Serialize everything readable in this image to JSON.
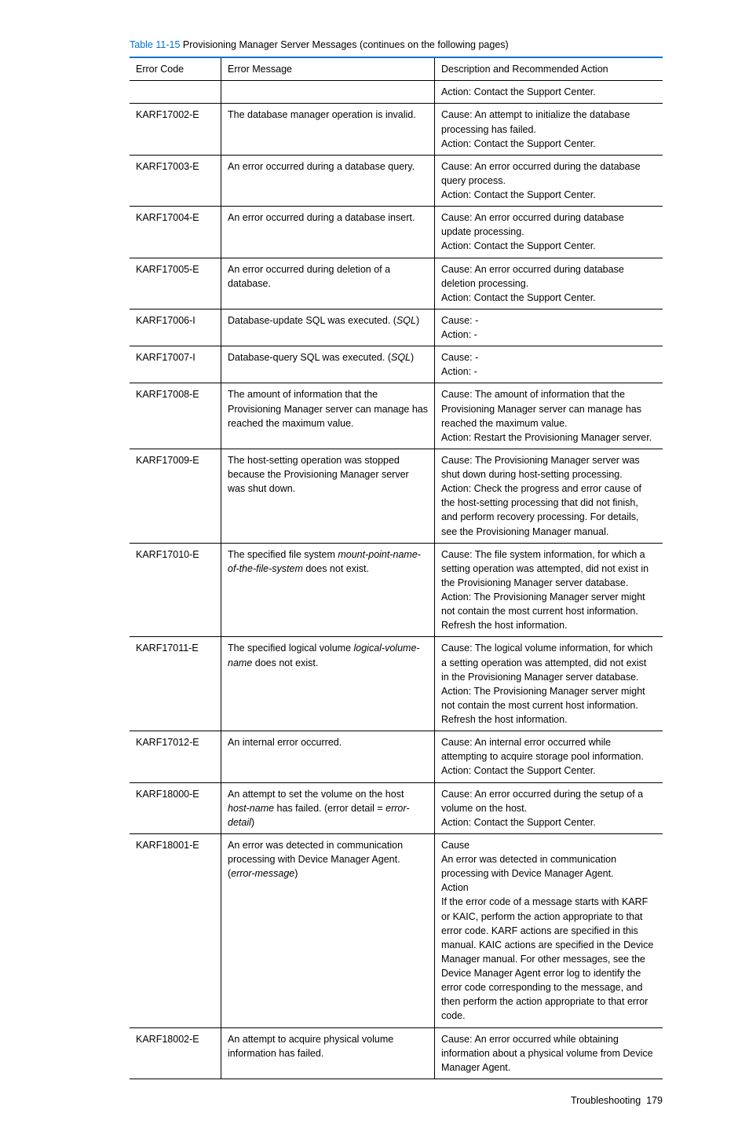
{
  "caption": {
    "ref": "Table 11-15",
    "text": " Provisioning Manager Server Messages (continues on the following pages)"
  },
  "columns": [
    "Error Code",
    "Error Message",
    "Description and Recommended Action"
  ],
  "rows": [
    {
      "code": "",
      "msg": [
        {
          "t": ""
        }
      ],
      "desc": [
        "Action: Contact the Support Center."
      ],
      "divider": false
    },
    {
      "code": "KARF17002-E",
      "msg": [
        {
          "t": "The database manager operation is invalid."
        }
      ],
      "desc": [
        "Cause: An attempt to initialize the database processing has failed.",
        "Action: Contact the Support Center."
      ],
      "divider": true
    },
    {
      "code": "KARF17003-E",
      "msg": [
        {
          "t": "An error occurred during a database query."
        }
      ],
      "desc": [
        "Cause: An error occurred during the database query process.",
        "Action: Contact the Support Center."
      ],
      "divider": true
    },
    {
      "code": "KARF17004-E",
      "msg": [
        {
          "t": "An error occurred during a database insert."
        }
      ],
      "desc": [
        "Cause: An error occurred during database update processing.",
        "Action: Contact the Support Center."
      ],
      "divider": true
    },
    {
      "code": "KARF17005-E",
      "msg": [
        {
          "t": "An error occurred during deletion of a database."
        }
      ],
      "desc": [
        "Cause: An error occurred during database deletion processing.",
        "Action: Contact the Support Center."
      ],
      "divider": true
    },
    {
      "code": "KARF17006-I",
      "msg": [
        {
          "t": "Database-update SQL was executed. ("
        },
        {
          "t": "SQL",
          "i": true
        },
        {
          "t": ")"
        }
      ],
      "desc": [
        "Cause: -",
        "Action: -"
      ],
      "divider": true
    },
    {
      "code": "KARF17007-I",
      "msg": [
        {
          "t": "Database-query SQL was executed. ("
        },
        {
          "t": "SQL",
          "i": true
        },
        {
          "t": ")"
        }
      ],
      "desc": [
        "Cause: -",
        "Action: -"
      ],
      "divider": true
    },
    {
      "code": "KARF17008-E",
      "msg": [
        {
          "t": "The amount of information that the Provisioning Manager server can manage has reached the maximum value."
        }
      ],
      "desc": [
        "Cause: The amount of information that the Provisioning Manager server can manage has reached the maximum value.",
        "Action: Restart the Provisioning Manager server."
      ],
      "divider": true
    },
    {
      "code": "KARF17009-E",
      "msg": [
        {
          "t": "The host-setting operation was stopped because the Provisioning Manager server was shut down."
        }
      ],
      "desc": [
        "Cause: The Provisioning Manager server was shut down during host-setting processing.",
        "Action: Check the progress and error cause of the host-setting processing that did not finish, and perform recovery processing. For details, see the Provisioning Manager manual."
      ],
      "divider": true
    },
    {
      "code": "KARF17010-E",
      "msg": [
        {
          "t": "The specified file system "
        },
        {
          "t": "mount-point-name-of-the-file-system",
          "i": true
        },
        {
          "t": " does not exist."
        }
      ],
      "desc": [
        "Cause: The file system information, for which a setting operation was attempted, did not exist in the Provisioning Manager server database.",
        "Action: The Provisioning Manager server might not contain the most current host information. Refresh the host information."
      ],
      "divider": true
    },
    {
      "code": "KARF17011-E",
      "msg": [
        {
          "t": "The specified logical volume "
        },
        {
          "t": "logical-volume-name",
          "i": true
        },
        {
          "t": " does not exist."
        }
      ],
      "desc": [
        "Cause: The logical volume information, for which a setting operation was attempted, did not exist in the Provisioning Manager server database.",
        "Action: The Provisioning Manager server might not contain the most current host information. Refresh the host information."
      ],
      "divider": true
    },
    {
      "code": "KARF17012-E",
      "msg": [
        {
          "t": "An internal error occurred."
        }
      ],
      "desc": [
        "Cause: An internal error occurred while attempting to acquire storage pool information.",
        "Action: Contact the Support Center."
      ],
      "divider": true
    },
    {
      "code": "KARF18000-E",
      "msg": [
        {
          "t": "An attempt to set the volume on the host "
        },
        {
          "t": "host-name",
          "i": true
        },
        {
          "t": " has failed. (error detail = "
        },
        {
          "t": "error-detail",
          "i": true
        },
        {
          "t": ")"
        }
      ],
      "desc": [
        "Cause: An error occurred during the setup of a volume on the host.",
        "Action: Contact the Support Center."
      ],
      "divider": true
    },
    {
      "code": "KARF18001-E",
      "msg": [
        {
          "t": "An error was detected in communication processing with Device Manager Agent. ("
        },
        {
          "t": "error-message",
          "i": true
        },
        {
          "t": ")"
        }
      ],
      "desc": [
        "Cause",
        "An error was detected in communication processing with Device Manager Agent.",
        "Action",
        "If the error code of a message starts with KARF or KAIC, perform the action appropriate to that error code. KARF actions are specified in this manual. KAIC actions are specified in the Device Manager manual. For other messages, see the Device Manager Agent error log to identify the error code corresponding to the message, and then perform the action appropriate to that error code."
      ],
      "divider": true
    },
    {
      "code": "KARF18002-E",
      "msg": [
        {
          "t": "An attempt to acquire physical volume information has failed."
        }
      ],
      "desc": [
        "Cause: An error occurred while obtaining information about a physical volume from Device Manager Agent."
      ],
      "divider": true
    }
  ],
  "footer": {
    "section": "Troubleshooting",
    "page": "179"
  }
}
